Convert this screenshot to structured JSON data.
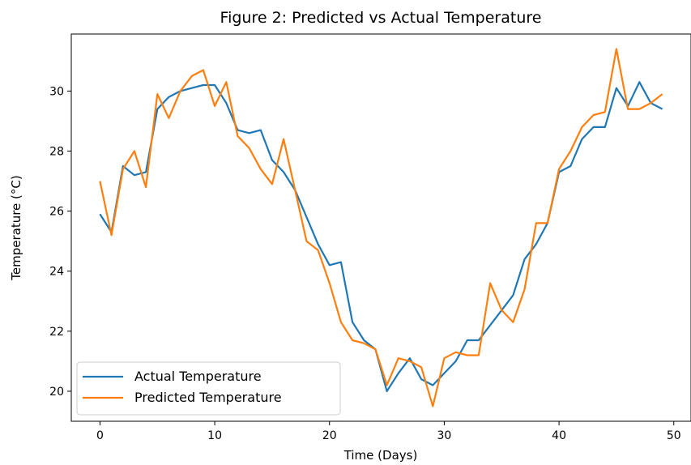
{
  "chart_data": {
    "type": "line",
    "title": "Figure 2: Predicted vs Actual Temperature",
    "xlabel": "Time (Days)",
    "ylabel": "Temperature (°C)",
    "xlim": [
      -2.5,
      51.5
    ],
    "ylim": [
      19.0,
      31.9
    ],
    "xticks": [
      0,
      10,
      20,
      30,
      40,
      50
    ],
    "yticks": [
      20,
      22,
      24,
      26,
      28,
      30
    ],
    "grid": false,
    "legend_position": "lower-left",
    "x": [
      0,
      1,
      2,
      3,
      4,
      5,
      6,
      7,
      8,
      9,
      10,
      11,
      12,
      13,
      14,
      15,
      16,
      17,
      18,
      19,
      20,
      21,
      22,
      23,
      24,
      25,
      26,
      27,
      28,
      29,
      30,
      31,
      32,
      33,
      34,
      35,
      36,
      37,
      38,
      39,
      40,
      41,
      42,
      43,
      44,
      45,
      46,
      47,
      48,
      49
    ],
    "series": [
      {
        "name": "Actual Temperature",
        "color": "#1f77b4",
        "values": [
          25.9,
          25.3,
          27.5,
          27.2,
          27.3,
          29.4,
          29.8,
          30.0,
          30.1,
          30.2,
          30.2,
          29.6,
          28.7,
          28.6,
          28.7,
          27.7,
          27.3,
          26.7,
          25.8,
          24.9,
          24.2,
          24.3,
          22.3,
          21.7,
          21.4,
          20.0,
          20.6,
          21.1,
          20.4,
          20.2,
          20.6,
          21.0,
          21.7,
          21.7,
          22.2,
          22.7,
          23.2,
          24.4,
          24.9,
          25.6,
          27.3,
          27.5,
          28.4,
          28.8,
          28.8,
          30.1,
          29.5,
          30.3,
          29.6,
          29.4
        ]
      },
      {
        "name": "Predicted Temperature",
        "color": "#ff7f0e",
        "values": [
          27.0,
          25.2,
          27.4,
          28.0,
          26.8,
          29.9,
          29.1,
          30.0,
          30.5,
          30.7,
          29.5,
          30.3,
          28.5,
          28.1,
          27.4,
          26.9,
          28.4,
          26.7,
          25.0,
          24.7,
          23.6,
          22.3,
          21.7,
          21.6,
          21.4,
          20.2,
          21.1,
          21.0,
          20.8,
          19.5,
          21.1,
          21.3,
          21.2,
          21.2,
          23.6,
          22.7,
          22.3,
          23.4,
          25.6,
          25.6,
          27.4,
          28.0,
          28.8,
          29.2,
          29.3,
          31.4,
          29.4,
          29.4,
          29.6,
          29.9
        ]
      }
    ]
  }
}
